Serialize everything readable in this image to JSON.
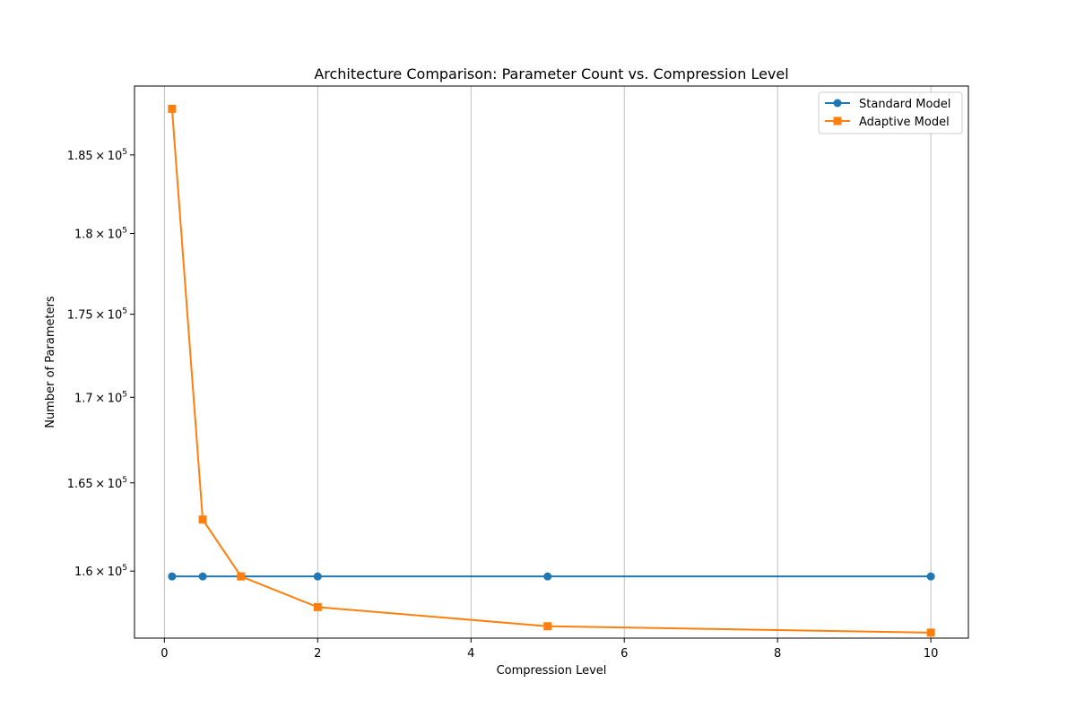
{
  "chart_data": {
    "type": "line",
    "title": "Architecture Comparison: Parameter Count vs. Compression Level",
    "xlabel": "Compression Level",
    "ylabel": "Number of Parameters",
    "x": [
      0.1,
      0.5,
      1,
      2,
      5,
      10
    ],
    "series": [
      {
        "name": "Standard Model",
        "values": [
          159700,
          159700,
          159700,
          159700,
          159700,
          159700
        ],
        "color": "#1f77b4",
        "marker": "circle"
      },
      {
        "name": "Adaptive Model",
        "values": [
          188000,
          162900,
          159700,
          158000,
          156950,
          156600
        ],
        "color": "#ff7f0e",
        "marker": "square"
      }
    ],
    "xlim": [
      -0.39,
      10.49
    ],
    "ylim": [
      156300,
      189500
    ],
    "y_scale": "log",
    "xticks": [
      {
        "value": 0,
        "label": "0"
      },
      {
        "value": 2,
        "label": "2"
      },
      {
        "value": 4,
        "label": "4"
      },
      {
        "value": 6,
        "label": "6"
      },
      {
        "value": 8,
        "label": "8"
      },
      {
        "value": 10,
        "label": "10"
      }
    ],
    "yticks": [
      {
        "value": 160000,
        "mantissa": "1.6",
        "base": "10",
        "exp": "5"
      },
      {
        "value": 165000,
        "mantissa": "1.65",
        "base": "10",
        "exp": "5"
      },
      {
        "value": 170000,
        "mantissa": "1.7",
        "base": "10",
        "exp": "5"
      },
      {
        "value": 175000,
        "mantissa": "1.75",
        "base": "10",
        "exp": "5"
      },
      {
        "value": 180000,
        "mantissa": "1.8",
        "base": "10",
        "exp": "5"
      },
      {
        "value": 185000,
        "mantissa": "1.85",
        "base": "10",
        "exp": "5"
      }
    ],
    "grid": "x-major",
    "legend_position": "top-right"
  }
}
